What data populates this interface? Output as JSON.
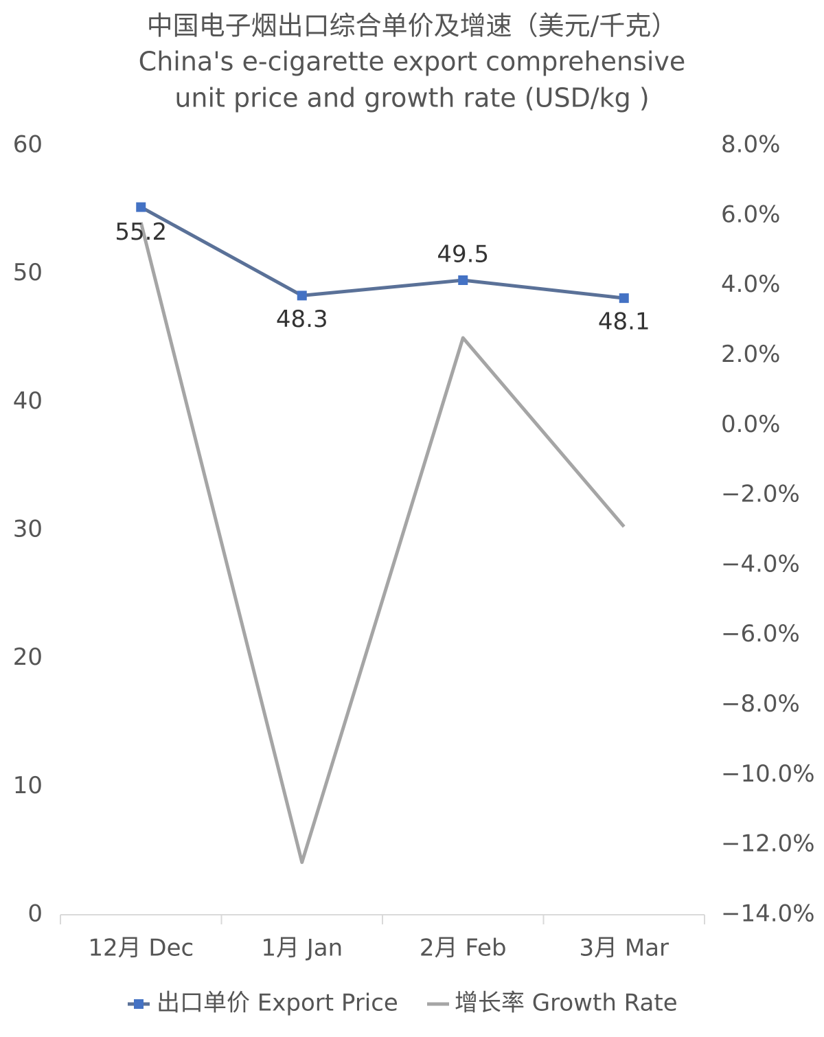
{
  "chart_data": {
    "type": "line",
    "title": [
      "中国电子烟出口综合单价及增速（美元/千克）",
      "China's e-cigarette export comprehensive",
      "unit price and growth rate (USD/kg )"
    ],
    "categories": [
      "12月 Dec",
      "1月 Jan",
      "2月 Feb",
      "3月 Mar"
    ],
    "series": [
      {
        "name": "出口单价 Export Price",
        "color": "#4472c4",
        "values": [
          55.2,
          48.3,
          49.5,
          48.1
        ]
      },
      {
        "name": "增长率 Growth Rate",
        "color": "#a5a5a5",
        "axis": "y2",
        "values": [
          5.8,
          -12.5,
          2.5,
          -2.9
        ]
      }
    ],
    "ylim": [
      0,
      60
    ],
    "yticks": [
      0,
      10,
      20,
      30,
      40,
      50,
      60
    ],
    "y2lim": [
      -14,
      8
    ],
    "y2ticks": [
      {
        "value": -14,
        "label": "−14.0%"
      },
      {
        "value": -12,
        "label": "−12.0%"
      },
      {
        "value": -10,
        "label": "−10.0%"
      },
      {
        "value": -8,
        "label": "−8.0%"
      },
      {
        "value": -6,
        "label": "−6.0%"
      },
      {
        "value": -4,
        "label": "−4.0%"
      },
      {
        "value": -2,
        "label": "−2.0%"
      },
      {
        "value": 0,
        "label": "0.0%"
      },
      {
        "value": 2,
        "label": "2.0%"
      },
      {
        "value": 4,
        "label": "4.0%"
      },
      {
        "value": 6,
        "label": "6.0%"
      },
      {
        "value": 8,
        "label": "8.0%"
      }
    ],
    "grid": false,
    "legend": "bottom"
  }
}
